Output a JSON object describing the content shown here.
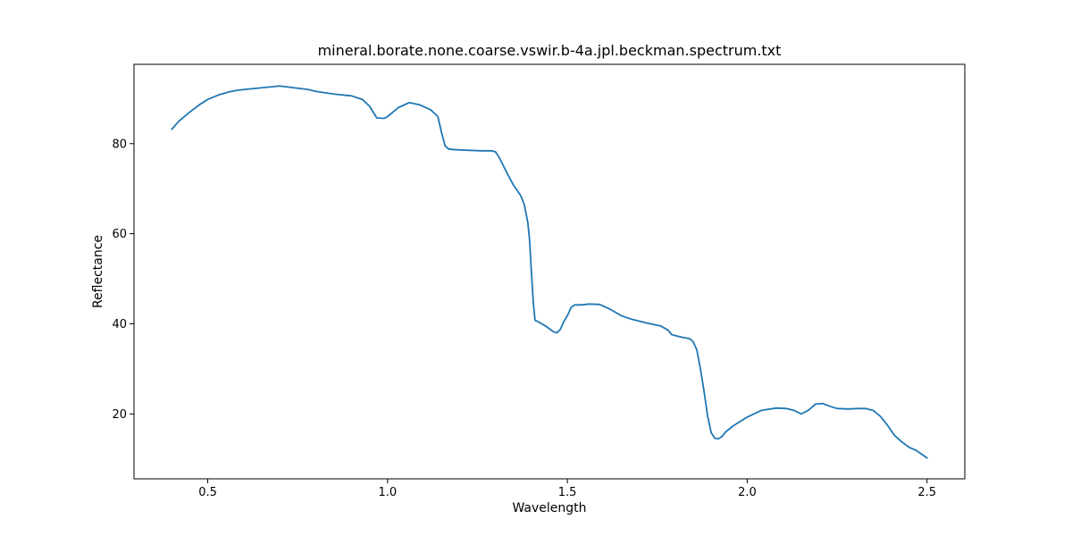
{
  "chart_data": {
    "type": "line",
    "title": "mineral.borate.none.coarse.vswir.b-4a.jpl.beckman.spectrum.txt",
    "xlabel": "Wavelength",
    "ylabel": "Reflectance",
    "xlim": [
      0.295,
      2.605
    ],
    "ylim": [
      5.6,
      97.6
    ],
    "xticks": [
      0.5,
      1.0,
      1.5,
      2.0,
      2.5
    ],
    "xtick_labels": [
      "0.5",
      "1.0",
      "1.5",
      "2.0",
      "2.5"
    ],
    "yticks": [
      20,
      40,
      60,
      80
    ],
    "ytick_labels": [
      "20",
      "40",
      "60",
      "80"
    ],
    "grid": false,
    "series": [
      {
        "color": "#1f77b4",
        "x": [
          0.4,
          0.42,
          0.45,
          0.48,
          0.5,
          0.53,
          0.56,
          0.58,
          0.6,
          0.65,
          0.7,
          0.75,
          0.78,
          0.8,
          0.85,
          0.9,
          0.93,
          0.95,
          0.97,
          0.99,
          1.0,
          1.03,
          1.06,
          1.09,
          1.12,
          1.14,
          1.15,
          1.16,
          1.17,
          1.18,
          1.2,
          1.23,
          1.26,
          1.29,
          1.3,
          1.31,
          1.33,
          1.35,
          1.37,
          1.38,
          1.39,
          1.395,
          1.4,
          1.405,
          1.41,
          1.42,
          1.44,
          1.46,
          1.47,
          1.48,
          1.49,
          1.5,
          1.51,
          1.52,
          1.54,
          1.56,
          1.59,
          1.62,
          1.65,
          1.68,
          1.72,
          1.76,
          1.78,
          1.79,
          1.82,
          1.84,
          1.85,
          1.86,
          1.87,
          1.88,
          1.89,
          1.9,
          1.91,
          1.92,
          1.93,
          1.94,
          1.96,
          2.0,
          2.04,
          2.08,
          2.11,
          2.13,
          2.15,
          2.17,
          2.19,
          2.21,
          2.23,
          2.25,
          2.28,
          2.31,
          2.33,
          2.35,
          2.37,
          2.39,
          2.41,
          2.43,
          2.45,
          2.47,
          2.49,
          2.5
        ],
        "y": [
          83.2,
          85.0,
          87.0,
          88.8,
          89.8,
          90.8,
          91.5,
          91.8,
          92.0,
          92.4,
          92.8,
          92.3,
          92.0,
          91.6,
          91.0,
          90.6,
          89.8,
          88.3,
          85.7,
          85.6,
          86.0,
          88.0,
          89.1,
          88.6,
          87.5,
          86.0,
          82.5,
          79.5,
          78.8,
          78.7,
          78.6,
          78.5,
          78.4,
          78.4,
          78.2,
          77.0,
          73.8,
          70.8,
          68.5,
          66.5,
          62.5,
          58.5,
          51.5,
          45.0,
          40.8,
          40.4,
          39.5,
          38.3,
          38.0,
          38.7,
          40.5,
          41.8,
          43.6,
          44.2,
          44.2,
          44.4,
          44.3,
          43.2,
          41.8,
          41.0,
          40.2,
          39.5,
          38.6,
          37.6,
          37.0,
          36.7,
          36.0,
          34.2,
          30.0,
          25.0,
          19.5,
          15.8,
          14.6,
          14.5,
          15.0,
          16.0,
          17.3,
          19.3,
          20.8,
          21.3,
          21.2,
          20.8,
          20.0,
          20.8,
          22.2,
          22.3,
          21.7,
          21.2,
          21.1,
          21.2,
          21.2,
          20.8,
          19.5,
          17.5,
          15.2,
          13.8,
          12.6,
          11.9,
          10.8,
          10.2
        ]
      }
    ]
  }
}
